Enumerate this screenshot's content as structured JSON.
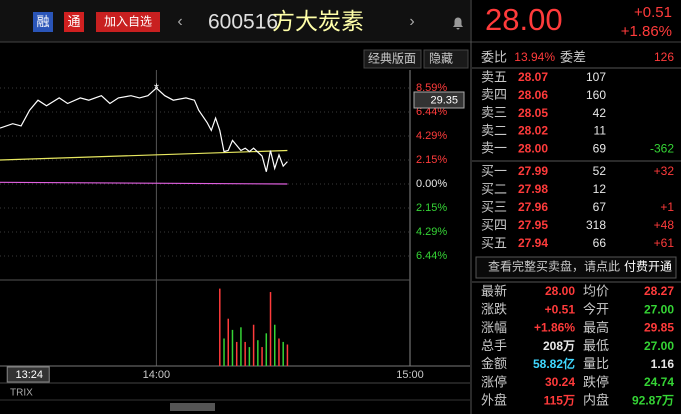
{
  "header": {
    "badges": [
      "融",
      "通"
    ],
    "add_button": "加入自选",
    "code": "600516",
    "name": "方大炭素",
    "price": "28.00",
    "change": "+0.51",
    "change_pct": "+1.86%"
  },
  "toolbar": {
    "layout": "经典版面",
    "hide": "隐藏"
  },
  "chart": {
    "ylim": [
      -8.59,
      8.59
    ],
    "yticks": [
      {
        "value": 8.59,
        "label": "8.59%"
      },
      {
        "value": 6.44,
        "label": "6.44%"
      },
      {
        "value": 4.29,
        "label": "4.29%"
      },
      {
        "value": 2.15,
        "label": "2.15%"
      },
      {
        "value": 0,
        "label": "0.00%"
      },
      {
        "value": -2.15,
        "label": "2.15%"
      },
      {
        "value": -4.29,
        "label": "4.29%"
      },
      {
        "value": -6.44,
        "label": "6.44%"
      }
    ],
    "xlim": [
      803,
      900
    ],
    "xticks": [
      {
        "value": 804,
        "label": "13:24"
      },
      {
        "value": 840,
        "label": "14:00"
      },
      {
        "value": 900,
        "label": "15:00"
      }
    ],
    "cursor_price": "29.35",
    "price": {
      "color": "#ffffff",
      "x": [
        803,
        806,
        808,
        810,
        812,
        814,
        817,
        819,
        822,
        824,
        827,
        829,
        831,
        834,
        836,
        838,
        840,
        842,
        844,
        847,
        849,
        850,
        852,
        853,
        854,
        855,
        856,
        857,
        858,
        860,
        861,
        862,
        863,
        865,
        866,
        867,
        868,
        869,
        870,
        871
      ],
      "values": [
        5.0,
        5.4,
        5.2,
        6.6,
        7.5,
        7.0,
        7.7,
        7.2,
        7.7,
        7.5,
        7.9,
        7.2,
        7.7,
        7.9,
        7.7,
        7.9,
        8.58,
        7.9,
        7.5,
        7.7,
        7.5,
        6.6,
        5.5,
        4.8,
        5.9,
        4.8,
        2.9,
        3.0,
        3.9,
        3.0,
        3.2,
        2.9,
        3.2,
        2.5,
        1.1,
        3.0,
        1.4,
        2.6,
        1.6,
        2.0
      ]
    },
    "avg": {
      "color": "#e8e860",
      "x": [
        803,
        871
      ],
      "values": [
        2.15,
        3.0
      ]
    },
    "index": {
      "color": "#e060e0",
      "x": [
        803,
        871
      ],
      "values": [
        0.15,
        0.0
      ]
    },
    "volume": {
      "ylim": [
        0,
        100
      ],
      "x": [
        855,
        856,
        857,
        858,
        859,
        860,
        861,
        862,
        863,
        864,
        865,
        866,
        867,
        868,
        869,
        870,
        871
      ],
      "values": [
        90,
        32,
        55,
        42,
        28,
        45,
        28,
        22,
        48,
        30,
        22,
        38,
        86,
        48,
        32,
        28,
        25
      ],
      "colors": [
        "#ff3b3b",
        "#35d435",
        "#ff3b3b",
        "#35d435",
        "#ff3b3b",
        "#35d435",
        "#ff3b3b",
        "#35d435",
        "#ff3b3b",
        "#35d435",
        "#ff3b3b",
        "#35d435",
        "#ff3b3b",
        "#35d435",
        "#ff3b3b",
        "#35d435",
        "#ff3b3b"
      ]
    },
    "indicator": "TRIX"
  },
  "order_book": {
    "ratio_label": "委比",
    "ratio": "13.94%",
    "diff_label": "委差",
    "diff": "126",
    "price_color": "#ff3b3b",
    "asks": [
      {
        "label": "卖五",
        "price": "28.07",
        "volume": "107"
      },
      {
        "label": "卖四",
        "price": "28.06",
        "volume": "160"
      },
      {
        "label": "卖三",
        "price": "28.05",
        "volume": "42"
      },
      {
        "label": "卖二",
        "price": "28.02",
        "volume": "11"
      },
      {
        "label": "卖一",
        "price": "28.00",
        "volume": "69",
        "change": "-362"
      }
    ],
    "bids": [
      {
        "label": "买一",
        "price": "27.99",
        "volume": "52",
        "change": "+32"
      },
      {
        "label": "买二",
        "price": "27.98",
        "volume": "12"
      },
      {
        "label": "买三",
        "price": "27.96",
        "volume": "67",
        "change": "+1"
      },
      {
        "label": "买四",
        "price": "27.95",
        "volume": "318",
        "change": "+48"
      },
      {
        "label": "买五",
        "price": "27.94",
        "volume": "66",
        "change": "+61"
      }
    ]
  },
  "upsell": {
    "text": "查看完整买卖盘，请点此",
    "link": "付费开通"
  },
  "stats": [
    [
      {
        "label": "最新",
        "value": "28.00",
        "color": "#ff3b3b"
      },
      {
        "label": "均价",
        "value": "28.27",
        "color": "#ff3b3b"
      }
    ],
    [
      {
        "label": "涨跌",
        "value": "+0.51",
        "color": "#ff3b3b"
      },
      {
        "label": "今开",
        "value": "27.00",
        "color": "#35d435"
      }
    ],
    [
      {
        "label": "涨幅",
        "value": "+1.86%",
        "color": "#ff3b3b"
      },
      {
        "label": "最高",
        "value": "29.85",
        "color": "#ff3b3b"
      }
    ],
    [
      {
        "label": "总手",
        "value": "208万",
        "color": "#e8e8e8"
      },
      {
        "label": "最低",
        "value": "27.00",
        "color": "#35d435"
      }
    ],
    [
      {
        "label": "金额",
        "value": "58.82亿",
        "color": "#40d8ff"
      },
      {
        "label": "量比",
        "value": "1.16",
        "color": "#e8e8e8"
      }
    ],
    [
      {
        "label": "涨停",
        "value": "30.24",
        "color": "#ff3b3b"
      },
      {
        "label": "跌停",
        "value": "24.74",
        "color": "#35d435"
      }
    ],
    [
      {
        "label": "外盘",
        "value": "115万",
        "color": "#ff3b3b"
      },
      {
        "label": "内盘",
        "value": "92.87万",
        "color": "#35d435"
      }
    ]
  ]
}
